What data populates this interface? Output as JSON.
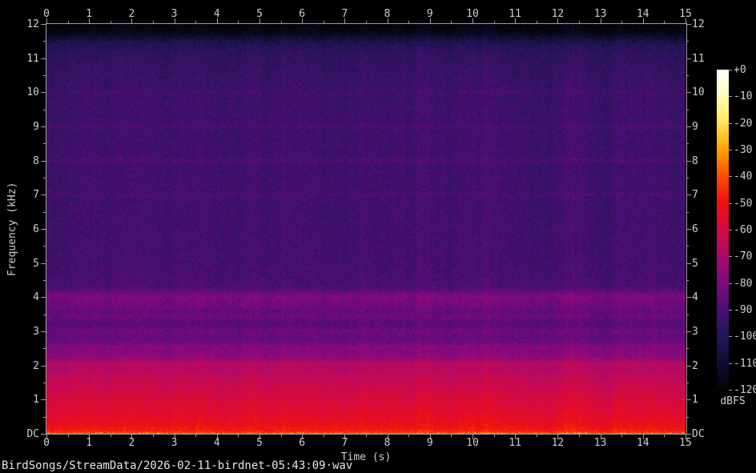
{
  "app": {
    "status_bar": "BirdSongs/StreamData/2026-02-11-birdnet-05:43:09·wav"
  },
  "chart_data": {
    "type": "heatmap",
    "subtype": "audio-spectrogram",
    "xlabel": "Time (s)",
    "ylabel": "Frequency (kHz)",
    "grid": false,
    "x_axis": {
      "min": 0,
      "max": 15,
      "minor_step": 0.5,
      "labels": [
        "0",
        "1",
        "2",
        "3",
        "4",
        "5",
        "6",
        "7",
        "8",
        "9",
        "10",
        "11",
        "12",
        "13",
        "14",
        "15"
      ]
    },
    "y_axis": {
      "min": 0,
      "max": 12,
      "minor_step": 0.5,
      "labels": [
        "DC",
        "1",
        "2",
        "3",
        "4",
        "5",
        "6",
        "7",
        "8",
        "9",
        "10",
        "11",
        "12"
      ]
    },
    "colorbar": {
      "title": "dBFS",
      "max_db": 0,
      "min_db": -120,
      "tick_step_db": 10,
      "labels": [
        "+0",
        "-10",
        "-20",
        "-30",
        "-40",
        "-50",
        "-60",
        "-70",
        "-80",
        "-90",
        "-100",
        "-110",
        "-120"
      ],
      "position": "right",
      "palette_stops": [
        {
          "db": 0,
          "color": "#ffffff"
        },
        {
          "db": -8,
          "color": "#ffffc8"
        },
        {
          "db": -18,
          "color": "#ffee66"
        },
        {
          "db": -30,
          "color": "#ffa400"
        },
        {
          "db": -40,
          "color": "#ff4a00"
        },
        {
          "db": -50,
          "color": "#f00f10"
        },
        {
          "db": -60,
          "color": "#d30a46"
        },
        {
          "db": -70,
          "color": "#ab0a6c"
        },
        {
          "db": -80,
          "color": "#7d0a80"
        },
        {
          "db": -90,
          "color": "#4c0e74"
        },
        {
          "db": -100,
          "color": "#221656"
        },
        {
          "db": -110,
          "color": "#0d0d33"
        },
        {
          "db": -120,
          "color": "#030309"
        }
      ]
    },
    "spectrum_profile_db": [
      [
        0.0,
        -36
      ],
      [
        0.04,
        -44
      ],
      [
        0.12,
        -49
      ],
      [
        0.3,
        -52
      ],
      [
        0.7,
        -56
      ],
      [
        1.0,
        -58
      ],
      [
        1.4,
        -62
      ],
      [
        1.8,
        -66
      ],
      [
        2.0,
        -70
      ],
      [
        2.3,
        -77
      ],
      [
        2.6,
        -83
      ],
      [
        3.0,
        -87
      ],
      [
        3.6,
        -89
      ],
      [
        4.3,
        -90.5
      ],
      [
        5.0,
        -92
      ],
      [
        6.0,
        -92.5
      ],
      [
        8.0,
        -93
      ],
      [
        9.5,
        -93.5
      ],
      [
        10.5,
        -95
      ],
      [
        11.15,
        -97
      ],
      [
        11.45,
        -102
      ],
      [
        11.6,
        -109
      ],
      [
        11.75,
        -116
      ],
      [
        12.0,
        -121
      ]
    ],
    "bands_khz_sigma_boost": [
      [
        4.0,
        0.13,
        10
      ],
      [
        3.72,
        0.09,
        6
      ],
      [
        3.45,
        0.09,
        5
      ],
      [
        3.0,
        0.08,
        4
      ],
      [
        2.55,
        0.08,
        3.5
      ],
      [
        2.05,
        0.06,
        5
      ],
      [
        8.0,
        0.05,
        3.5
      ],
      [
        7.0,
        0.05,
        2.5
      ],
      [
        9.0,
        0.05,
        2.5
      ],
      [
        10.0,
        0.05,
        2
      ]
    ],
    "noise_sigma_db": {
      "low": 5,
      "high": 6.5,
      "split_khz": 2.2
    },
    "dc_line": {
      "below_khz": 0.05,
      "sparkle_probability": 0.1,
      "sparkle_boost_db": 16
    }
  }
}
